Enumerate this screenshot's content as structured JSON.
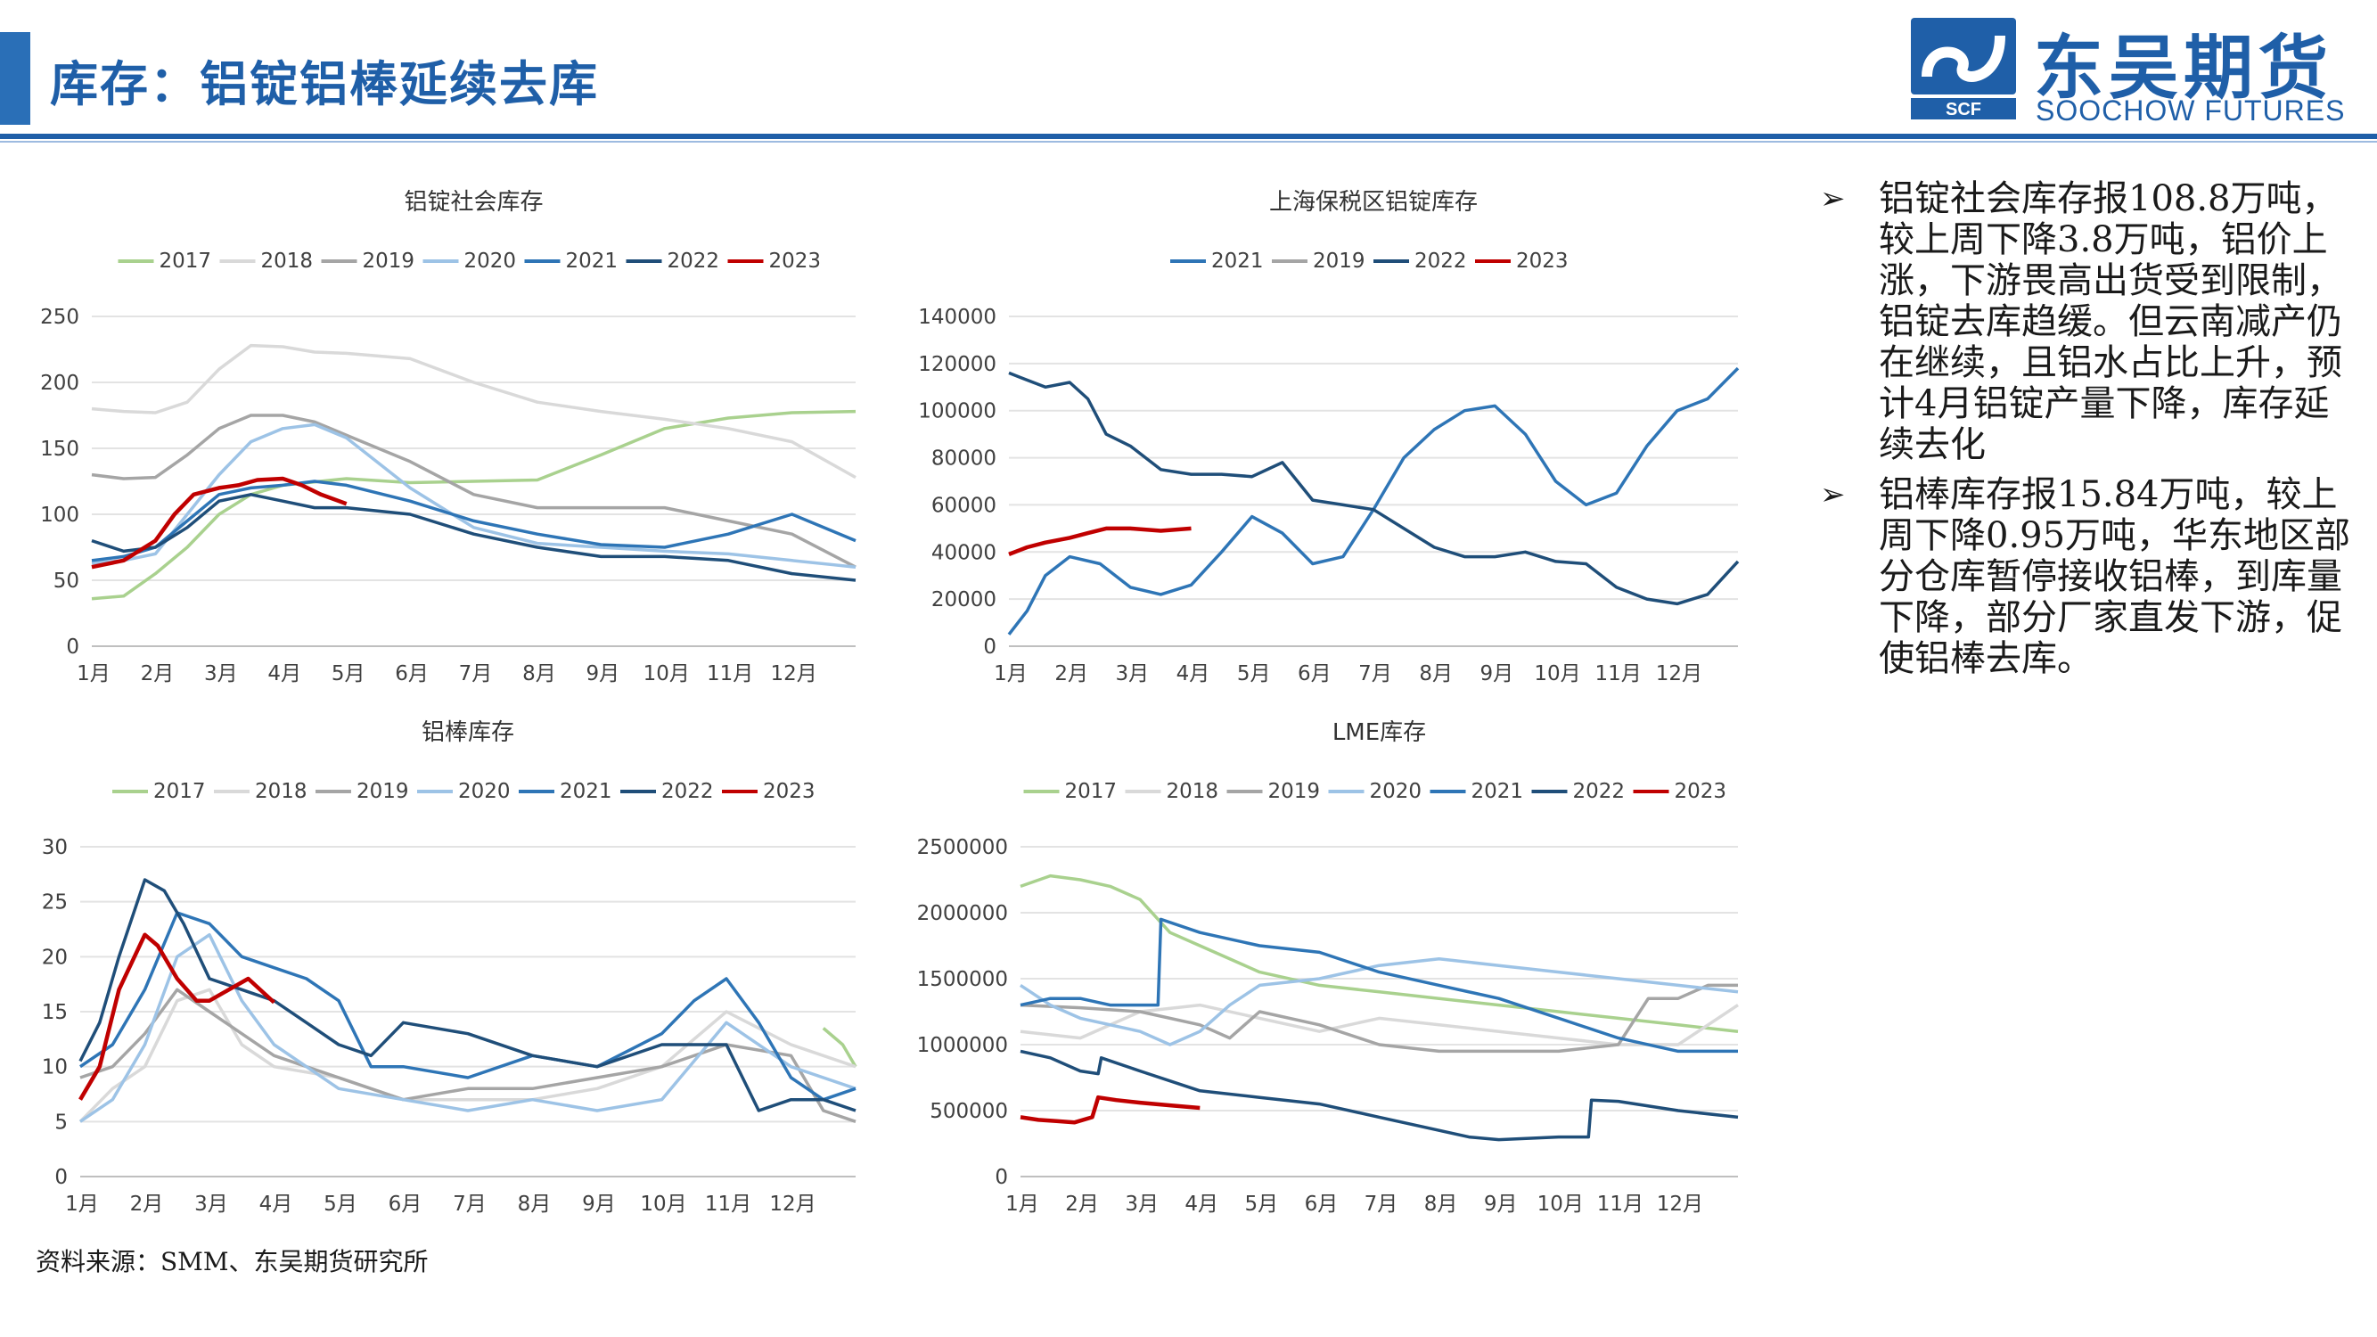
{
  "header": {
    "title": "库存：铝锭铝棒延续去库",
    "logo_cn": "东吴期货",
    "logo_en": "SOOCHOW FUTURES",
    "logo_mark_text": "SCF",
    "accent_color": "#1f5fa8"
  },
  "bullets": [
    "铝锭社会库存报108.8万吨，较上周下降3.8万吨，铝价上涨，下游畏高出货受到限制，铝锭去库趋缓。但云南减产仍在继续，且铝水占比上升，预计4月铝锭产量下降，库存延续去化",
    "铝棒库存报15.84万吨，较上周下降0.95万吨，华东地区部分仓库暂停接收铝棒，到库量下降，部分厂家直发下游，促使铝棒去库。"
  ],
  "bullet_marker": "➢",
  "source": "资料来源：SMM、东吴期货研究所",
  "series_colors": {
    "2017": "#a9d18e",
    "2018": "#d9d9d9",
    "2019": "#a5a5a5",
    "2020": "#9dc3e6",
    "2021": "#2e75b6",
    "2022": "#1f4e79",
    "2023": "#c00000"
  },
  "chart_data": [
    {
      "id": "ingot-social",
      "type": "line",
      "title": "铝锭社会库存",
      "categories": [
        "1月",
        "2月",
        "3月",
        "4月",
        "5月",
        "6月",
        "7月",
        "8月",
        "9月",
        "10月",
        "11月",
        "12月"
      ],
      "ylim": [
        0,
        250
      ],
      "yticks": [
        0,
        50,
        100,
        150,
        200,
        250
      ],
      "grid": true,
      "legend": "top",
      "series": [
        {
          "name": "2017",
          "x": [
            0,
            0.5,
            1,
            1.5,
            2,
            2.5,
            3,
            4,
            5,
            6,
            7,
            8,
            9,
            10,
            11,
            12
          ],
          "y": [
            36,
            38,
            55,
            75,
            100,
            115,
            122,
            127,
            124,
            125,
            126,
            145,
            165,
            173,
            177,
            178
          ]
        },
        {
          "name": "2018",
          "x": [
            0,
            0.5,
            1,
            1.5,
            2,
            2.5,
            3,
            3.5,
            4,
            5,
            6,
            7,
            8,
            9,
            10,
            11,
            12
          ],
          "y": [
            180,
            178,
            177,
            185,
            210,
            228,
            227,
            223,
            222,
            218,
            200,
            185,
            178,
            172,
            165,
            155,
            128
          ]
        },
        {
          "name": "2019",
          "x": [
            0,
            0.5,
            1,
            1.5,
            2,
            2.5,
            3,
            3.5,
            4,
            5,
            6,
            7,
            8,
            9,
            10,
            11,
            12
          ],
          "y": [
            130,
            127,
            128,
            145,
            165,
            175,
            175,
            170,
            160,
            140,
            115,
            105,
            105,
            105,
            95,
            85,
            60
          ]
        },
        {
          "name": "2020",
          "x": [
            0,
            0.5,
            1,
            1.5,
            2,
            2.5,
            3,
            3.5,
            4,
            5,
            6,
            7,
            8,
            9,
            10,
            11,
            12
          ],
          "y": [
            63,
            65,
            70,
            100,
            130,
            155,
            165,
            168,
            158,
            120,
            90,
            78,
            75,
            72,
            70,
            65,
            60
          ]
        },
        {
          "name": "2021",
          "x": [
            0,
            0.5,
            1,
            1.5,
            2,
            2.5,
            3,
            3.5,
            4,
            5,
            6,
            7,
            8,
            9,
            10,
            11,
            12
          ],
          "y": [
            65,
            68,
            75,
            95,
            115,
            120,
            122,
            125,
            122,
            110,
            95,
            85,
            77,
            75,
            85,
            100,
            80
          ]
        },
        {
          "name": "2022",
          "x": [
            0,
            0.5,
            1,
            1.5,
            2,
            2.5,
            3,
            3.5,
            4,
            5,
            6,
            7,
            8,
            9,
            10,
            11,
            12
          ],
          "y": [
            80,
            72,
            75,
            90,
            110,
            115,
            110,
            105,
            105,
            100,
            85,
            75,
            68,
            68,
            65,
            55,
            50
          ]
        },
        {
          "name": "2023",
          "x": [
            0,
            0.5,
            1,
            1.3,
            1.6,
            2,
            2.3,
            2.6,
            3,
            3.3,
            3.6,
            4
          ],
          "y": [
            60,
            65,
            80,
            100,
            115,
            120,
            122,
            126,
            127,
            122,
            115,
            108
          ]
        }
      ]
    },
    {
      "id": "bonded-ingot",
      "type": "line",
      "title": "上海保税区铝锭库存",
      "categories": [
        "1月",
        "2月",
        "3月",
        "4月",
        "5月",
        "6月",
        "7月",
        "8月",
        "9月",
        "10月",
        "11月",
        "12月"
      ],
      "ylim": [
        0,
        140000
      ],
      "yticks": [
        0,
        20000,
        40000,
        60000,
        80000,
        100000,
        120000,
        140000
      ],
      "grid": true,
      "legend": "top",
      "series": [
        {
          "name": "2021",
          "x": [
            0,
            0.3,
            0.6,
            1,
            1.5,
            2,
            2.5,
            3,
            3.5,
            4,
            4.5,
            5,
            5.5,
            6,
            6.5,
            7,
            7.5,
            8,
            8.5,
            9,
            9.5,
            10,
            10.5,
            11,
            11.5,
            12
          ],
          "y": [
            5000,
            15000,
            30000,
            38000,
            35000,
            25000,
            22000,
            26000,
            40000,
            55000,
            48000,
            35000,
            38000,
            58000,
            80000,
            92000,
            100000,
            102000,
            90000,
            70000,
            60000,
            65000,
            85000,
            100000,
            105000,
            118000
          ]
        },
        {
          "name": "2019",
          "x": [],
          "y": []
        },
        {
          "name": "2022",
          "x": [
            0,
            0.3,
            0.6,
            1,
            1.3,
            1.6,
            2,
            2.5,
            3,
            3.5,
            4,
            4.5,
            5,
            5.5,
            6,
            6.5,
            7,
            7.5,
            8,
            8.5,
            9,
            9.5,
            10,
            10.5,
            11,
            11.5,
            12
          ],
          "y": [
            116000,
            113000,
            110000,
            112000,
            105000,
            90000,
            85000,
            75000,
            73000,
            73000,
            72000,
            78000,
            62000,
            60000,
            58000,
            50000,
            42000,
            38000,
            38000,
            40000,
            36000,
            35000,
            25000,
            20000,
            18000,
            22000,
            36000
          ]
        },
        {
          "name": "2023",
          "x": [
            0,
            0.3,
            0.6,
            1,
            1.3,
            1.6,
            2,
            2.5,
            3
          ],
          "y": [
            39000,
            42000,
            44000,
            46000,
            48000,
            50000,
            50000,
            49000,
            50000
          ]
        }
      ]
    },
    {
      "id": "bar-inventory",
      "type": "line",
      "title": "铝棒库存",
      "categories": [
        "1月",
        "2月",
        "3月",
        "4月",
        "5月",
        "6月",
        "7月",
        "8月",
        "9月",
        "10月",
        "11月",
        "12月"
      ],
      "ylim": [
        0,
        30
      ],
      "yticks": [
        0,
        5,
        10,
        15,
        20,
        25,
        30
      ],
      "grid": true,
      "legend": "top",
      "series": [
        {
          "name": "2017",
          "x": [
            11.5,
            11.8,
            12
          ],
          "y": [
            13.5,
            12,
            10
          ]
        },
        {
          "name": "2018",
          "x": [
            0,
            0.5,
            1,
            1.5,
            2,
            2.5,
            3,
            4,
            5,
            6,
            7,
            8,
            9,
            10,
            11,
            12
          ],
          "y": [
            5,
            8,
            10,
            16,
            17,
            12,
            10,
            9,
            7,
            7,
            7,
            8,
            10,
            15,
            12,
            10
          ]
        },
        {
          "name": "2019",
          "x": [
            0,
            0.5,
            1,
            1.5,
            2,
            2.5,
            3,
            4,
            5,
            6,
            7,
            8,
            9,
            10,
            11,
            11.5,
            12
          ],
          "y": [
            9,
            10,
            13,
            17,
            15,
            13,
            11,
            9,
            7,
            8,
            8,
            9,
            10,
            12,
            11,
            6,
            5
          ]
        },
        {
          "name": "2020",
          "x": [
            0,
            0.5,
            1,
            1.5,
            2,
            2.5,
            3,
            3.5,
            4,
            5,
            6,
            7,
            8,
            9,
            10,
            11,
            12
          ],
          "y": [
            5,
            7,
            12,
            20,
            22,
            16,
            12,
            10,
            8,
            7,
            6,
            7,
            6,
            7,
            14,
            10,
            8
          ]
        },
        {
          "name": "2021",
          "x": [
            0,
            0.5,
            1,
            1.5,
            2,
            2.5,
            3,
            3.5,
            4,
            4.5,
            5,
            6,
            7,
            8,
            9,
            9.5,
            10,
            10.5,
            11,
            11.5,
            12
          ],
          "y": [
            10,
            12,
            17,
            24,
            23,
            20,
            19,
            18,
            16,
            10,
            10,
            9,
            11,
            10,
            13,
            16,
            18,
            14,
            9,
            7,
            8
          ]
        },
        {
          "name": "2022",
          "x": [
            0,
            0.3,
            0.6,
            1,
            1.3,
            1.6,
            2,
            2.5,
            3,
            3.5,
            4,
            4.5,
            5,
            6,
            7,
            8,
            9,
            10,
            10.5,
            11,
            11.5,
            12
          ],
          "y": [
            10.5,
            14,
            20,
            27,
            26,
            23,
            18,
            17,
            16,
            14,
            12,
            11,
            14,
            13,
            11,
            10,
            12,
            12,
            6,
            7,
            7,
            6
          ]
        },
        {
          "name": "2023",
          "x": [
            0,
            0.3,
            0.6,
            1,
            1.2,
            1.5,
            1.8,
            2,
            2.3,
            2.6,
            3
          ],
          "y": [
            7,
            10,
            17,
            22,
            21,
            18,
            16,
            16,
            17,
            18,
            15.84
          ]
        }
      ]
    },
    {
      "id": "lme-inventory",
      "type": "line",
      "title": "LME库存",
      "categories": [
        "1月",
        "2月",
        "3月",
        "4月",
        "5月",
        "6月",
        "7月",
        "8月",
        "9月",
        "10月",
        "11月",
        "12月"
      ],
      "ylim": [
        0,
        2500000
      ],
      "yticks": [
        0,
        500000,
        1000000,
        1500000,
        2000000,
        2500000
      ],
      "grid": true,
      "legend": "top",
      "series": [
        {
          "name": "2017",
          "x": [
            0,
            0.5,
            1,
            1.5,
            2,
            2.5,
            3,
            4,
            5,
            6,
            7,
            8,
            9,
            10,
            11,
            12
          ],
          "y": [
            2200000,
            2280000,
            2250000,
            2200000,
            2100000,
            1850000,
            1750000,
            1550000,
            1450000,
            1400000,
            1350000,
            1300000,
            1250000,
            1200000,
            1150000,
            1100000
          ]
        },
        {
          "name": "2018",
          "x": [
            0,
            1,
            2,
            3,
            4,
            5,
            6,
            7,
            8,
            9,
            10,
            11,
            12
          ],
          "y": [
            1100000,
            1050000,
            1250000,
            1300000,
            1200000,
            1100000,
            1200000,
            1150000,
            1100000,
            1050000,
            1000000,
            1000000,
            1300000
          ]
        },
        {
          "name": "2019",
          "x": [
            0,
            1,
            2,
            3,
            3.5,
            4,
            5,
            6,
            7,
            8,
            9,
            10,
            10.5,
            11,
            11.5,
            12
          ],
          "y": [
            1300000,
            1280000,
            1250000,
            1150000,
            1050000,
            1250000,
            1150000,
            1000000,
            950000,
            950000,
            950000,
            1000000,
            1350000,
            1350000,
            1450000,
            1450000
          ]
        },
        {
          "name": "2020",
          "x": [
            0,
            0.5,
            1,
            2,
            2.5,
            3,
            3.5,
            4,
            5,
            6,
            7,
            8,
            9,
            10,
            11,
            12
          ],
          "y": [
            1450000,
            1300000,
            1200000,
            1100000,
            1000000,
            1100000,
            1300000,
            1450000,
            1500000,
            1600000,
            1650000,
            1600000,
            1550000,
            1500000,
            1450000,
            1400000
          ]
        },
        {
          "name": "2021",
          "x": [
            0,
            0.5,
            1,
            1.5,
            2,
            2.3,
            2.35,
            3,
            4,
            5,
            6,
            7,
            8,
            9,
            10,
            11,
            11.5,
            12
          ],
          "y": [
            1300000,
            1350000,
            1350000,
            1300000,
            1300000,
            1300000,
            1950000,
            1850000,
            1750000,
            1700000,
            1550000,
            1450000,
            1350000,
            1200000,
            1050000,
            950000,
            950000,
            950000
          ]
        },
        {
          "name": "2022",
          "x": [
            0,
            0.5,
            1,
            1.3,
            1.35,
            2,
            3,
            4,
            5,
            6,
            7,
            7.5,
            8,
            9,
            9.5,
            9.55,
            10,
            11,
            12
          ],
          "y": [
            950000,
            900000,
            800000,
            780000,
            900000,
            800000,
            650000,
            600000,
            550000,
            450000,
            350000,
            300000,
            280000,
            300000,
            300000,
            580000,
            570000,
            500000,
            450000
          ]
        },
        {
          "name": "2023",
          "x": [
            0,
            0.3,
            0.6,
            0.9,
            1.2,
            1.3,
            1.6,
            2,
            2.5,
            3
          ],
          "y": [
            450000,
            430000,
            420000,
            410000,
            450000,
            600000,
            580000,
            560000,
            540000,
            520000
          ]
        }
      ]
    }
  ]
}
